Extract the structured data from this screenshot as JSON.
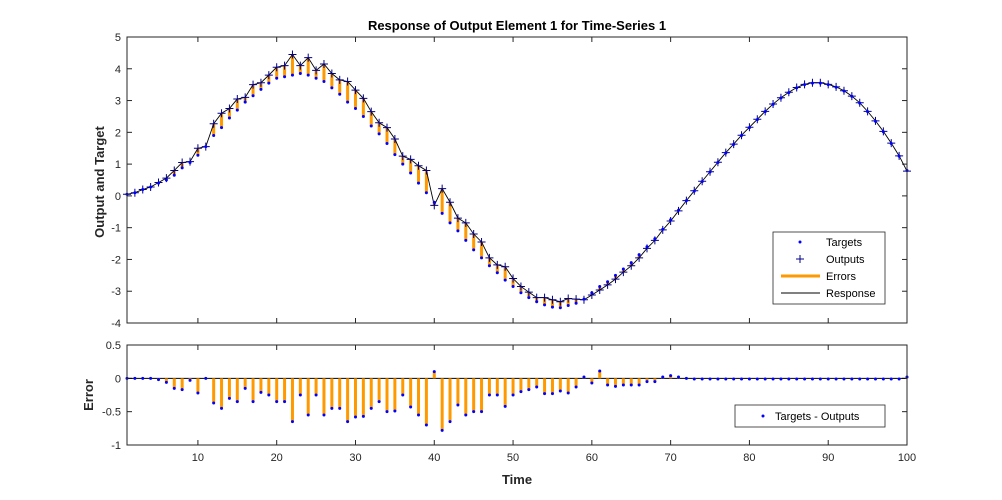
{
  "chart_data": [
    {
      "type": "line",
      "title": "Response of Output Element 1 for Time-Series 1",
      "xlabel": "",
      "ylabel": "Output and Target",
      "xlim": [
        1,
        100
      ],
      "ylim": [
        -4,
        5
      ],
      "yticks": [
        "-4",
        "-3",
        "-2",
        "-1",
        "0",
        "1",
        "2",
        "3",
        "4",
        "5"
      ],
      "grid": false,
      "legend_position": "bottom-right",
      "legend": [
        "Targets",
        "Outputs",
        "Errors",
        "Response"
      ],
      "colors": {
        "targets": "#0000ff",
        "outputs": "#00008b",
        "errors": "#ff9900",
        "response": "#000000"
      },
      "x": [
        1,
        2,
        3,
        4,
        5,
        6,
        7,
        8,
        9,
        10,
        11,
        12,
        13,
        14,
        15,
        16,
        17,
        18,
        19,
        20,
        21,
        22,
        23,
        24,
        25,
        26,
        27,
        28,
        29,
        30,
        31,
        32,
        33,
        34,
        35,
        36,
        37,
        38,
        39,
        40,
        41,
        42,
        43,
        44,
        45,
        46,
        47,
        48,
        49,
        50,
        51,
        52,
        53,
        54,
        55,
        56,
        57,
        58,
        59,
        60,
        61,
        62,
        63,
        64,
        65,
        66,
        67,
        68,
        69,
        70,
        71,
        72,
        73,
        74,
        75,
        76,
        77,
        78,
        79,
        80,
        81,
        82,
        83,
        84,
        85,
        86,
        87,
        88,
        89,
        90,
        91,
        92,
        93,
        94,
        95,
        96,
        97,
        98,
        99,
        100
      ],
      "series": [
        {
          "name": "Targets",
          "values": [
            0.05,
            0.1,
            0.2,
            0.28,
            0.4,
            0.5,
            0.65,
            0.88,
            1.05,
            1.28,
            1.55,
            1.9,
            2.15,
            2.45,
            2.7,
            2.95,
            3.15,
            3.35,
            3.55,
            3.7,
            3.75,
            3.8,
            3.85,
            3.8,
            3.7,
            3.6,
            3.4,
            3.2,
            2.95,
            2.75,
            2.5,
            2.2,
            1.95,
            1.65,
            1.3,
            1.0,
            0.72,
            0.4,
            0.1,
            -0.2,
            -0.55,
            -0.85,
            -1.1,
            -1.4,
            -1.7,
            -1.95,
            -2.2,
            -2.42,
            -2.65,
            -2.85,
            -3.05,
            -3.2,
            -3.33,
            -3.43,
            -3.5,
            -3.52,
            -3.45,
            -3.38,
            -3.25,
            -3.05,
            -2.85,
            -2.7,
            -2.5,
            -2.3,
            -2.1,
            -1.85,
            -1.6,
            -1.35,
            -1.05,
            -0.75,
            -0.45,
            -0.15,
            0.15,
            0.45,
            0.75,
            1.05,
            1.35,
            1.62,
            1.9,
            2.15,
            2.4,
            2.65,
            2.88,
            3.08,
            3.25,
            3.4,
            3.5,
            3.55,
            3.55,
            3.5,
            3.42,
            3.3,
            3.13,
            2.92,
            2.65,
            2.35,
            2.02,
            1.65,
            1.25,
            0.8
          ]
        },
        {
          "name": "Outputs",
          "values": [
            0.05,
            0.1,
            0.2,
            0.28,
            0.42,
            0.56,
            0.8,
            1.05,
            1.08,
            1.5,
            1.55,
            2.27,
            2.6,
            2.75,
            3.05,
            3.1,
            3.5,
            3.56,
            3.8,
            4.05,
            4.1,
            4.45,
            4.1,
            4.35,
            3.95,
            4.15,
            3.85,
            3.65,
            3.6,
            3.33,
            3.07,
            2.65,
            2.3,
            2.15,
            1.79,
            1.25,
            1.15,
            0.95,
            0.8,
            -0.3,
            0.23,
            -0.2,
            -0.7,
            -0.85,
            -1.2,
            -1.45,
            -1.95,
            -2.17,
            -2.23,
            -2.6,
            -2.85,
            -3.03,
            -3.2,
            -3.2,
            -3.27,
            -3.33,
            -3.23,
            -3.25,
            -3.27,
            -3.12,
            -2.96,
            -2.8,
            -2.62,
            -2.4,
            -2.2,
            -1.95,
            -1.65,
            -1.4,
            -1.07,
            -0.79,
            -0.47,
            -0.15,
            0.16,
            0.46,
            0.76,
            1.06,
            1.36,
            1.63,
            1.91,
            2.16,
            2.41,
            2.66,
            2.89,
            3.09,
            3.26,
            3.41,
            3.51,
            3.56,
            3.56,
            3.51,
            3.43,
            3.31,
            3.14,
            2.93,
            2.66,
            2.36,
            2.03,
            1.66,
            1.26,
            0.78
          ]
        }
      ]
    },
    {
      "type": "bar",
      "title": "",
      "xlabel": "Time",
      "ylabel": "Error",
      "xlim": [
        1,
        100
      ],
      "ylim": [
        -1,
        0.5
      ],
      "xticks": [
        "10",
        "20",
        "30",
        "40",
        "50",
        "60",
        "70",
        "80",
        "90",
        "100"
      ],
      "yticks": [
        "-1",
        "-0.5",
        "0",
        "0.5"
      ],
      "grid": false,
      "legend_position": "bottom-right",
      "legend": [
        "Targets - Outputs"
      ],
      "colors": {
        "errors": "#ff9900",
        "points": "#0000ff"
      },
      "series": [
        {
          "name": "Targets - Outputs",
          "values": [
            0,
            0,
            0,
            0,
            -0.02,
            -0.06,
            -0.15,
            -0.17,
            -0.03,
            -0.22,
            0,
            -0.37,
            -0.45,
            -0.3,
            -0.35,
            -0.15,
            -0.35,
            -0.21,
            -0.25,
            -0.35,
            -0.35,
            -0.65,
            -0.25,
            -0.55,
            -0.25,
            -0.55,
            -0.45,
            -0.45,
            -0.65,
            -0.58,
            -0.57,
            -0.45,
            -0.35,
            -0.5,
            -0.49,
            -0.25,
            -0.43,
            -0.55,
            -0.7,
            0.1,
            -0.78,
            -0.65,
            -0.4,
            -0.55,
            -0.5,
            -0.5,
            -0.25,
            -0.25,
            -0.42,
            -0.25,
            -0.2,
            -0.17,
            -0.13,
            -0.23,
            -0.23,
            -0.19,
            -0.22,
            -0.13,
            0.02,
            -0.07,
            0.11,
            -0.1,
            -0.12,
            -0.1,
            -0.1,
            -0.1,
            -0.05,
            -0.05,
            0.02,
            0.04,
            0.02,
            0,
            -0.01,
            -0.01,
            -0.01,
            -0.01,
            -0.01,
            -0.01,
            -0.01,
            -0.01,
            -0.01,
            -0.01,
            -0.01,
            -0.01,
            -0.01,
            -0.01,
            -0.01,
            -0.01,
            -0.01,
            -0.01,
            -0.01,
            -0.01,
            -0.01,
            -0.01,
            -0.01,
            -0.01,
            -0.01,
            -0.01,
            -0.01,
            0.02
          ]
        }
      ]
    }
  ]
}
